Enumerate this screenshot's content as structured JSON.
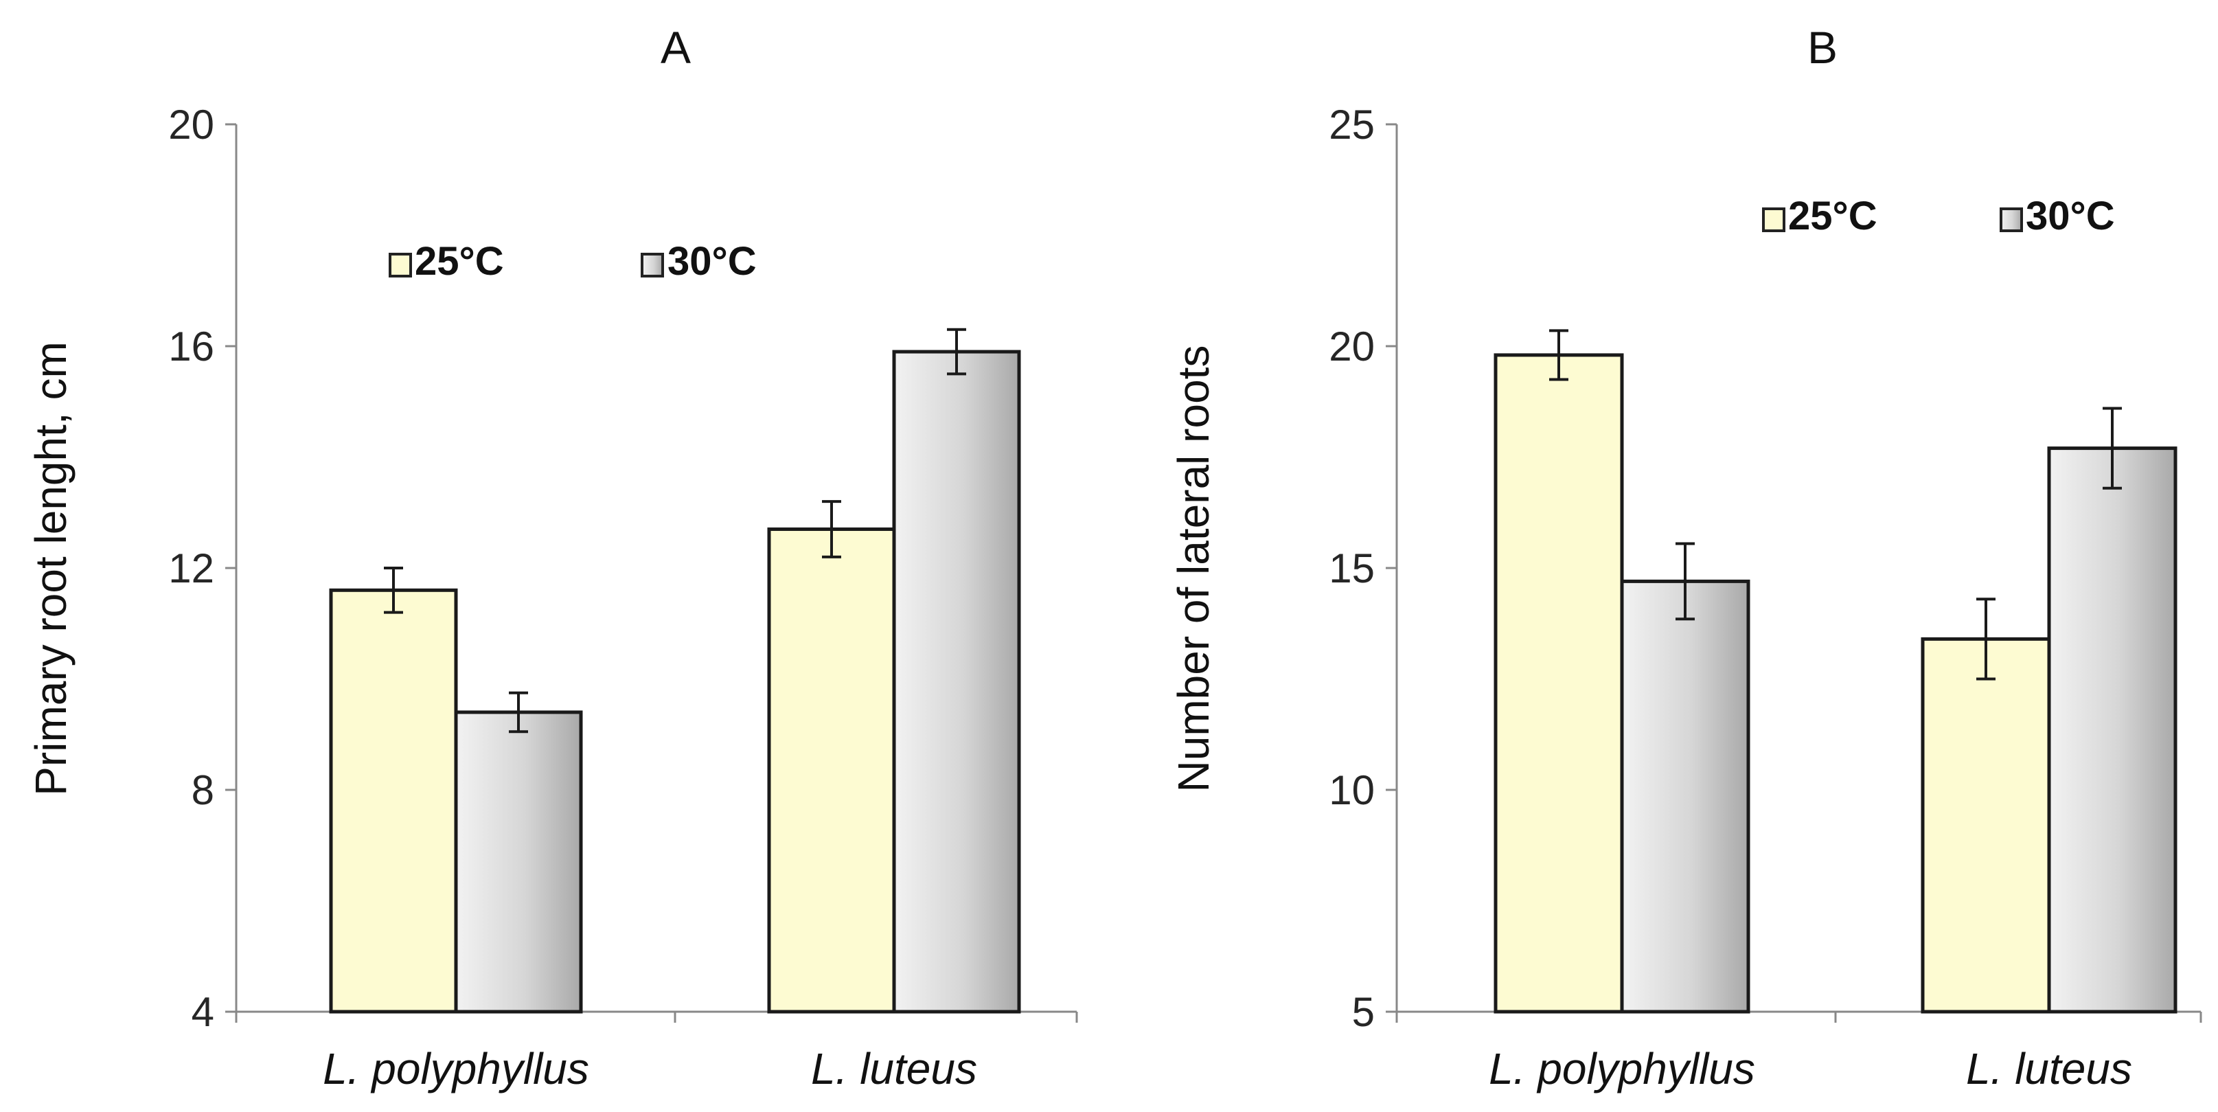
{
  "chart_data": [
    {
      "type": "bar",
      "title": "A",
      "ylabel": "Primary root lenght, cm",
      "ylim": [
        4,
        20
      ],
      "yticks": [
        "4",
        "8",
        "12",
        "16",
        "20"
      ],
      "categories": [
        "L. polyphyllus",
        "L. luteus"
      ],
      "series": [
        {
          "name": "25°C",
          "values": [
            11.6,
            12.7
          ],
          "errors": [
            0.4,
            0.5
          ],
          "color": "#fdfbd2"
        },
        {
          "name": "30°C",
          "values": [
            9.4,
            15.9
          ],
          "errors": [
            0.35,
            0.4
          ],
          "color": "#d9d9d9"
        }
      ],
      "legend": "top"
    },
    {
      "type": "bar",
      "title": "B",
      "ylabel": "Number of lateral roots",
      "ylim": [
        5,
        25
      ],
      "yticks": [
        "5",
        "10",
        "15",
        "20",
        "25"
      ],
      "categories": [
        "L. polyphyllus",
        "L. luteus"
      ],
      "series": [
        {
          "name": "25°C",
          "values": [
            19.8,
            13.4
          ],
          "errors": [
            0.55,
            0.9
          ],
          "color": "#fdfbd2"
        },
        {
          "name": "30°C",
          "values": [
            14.7,
            17.7
          ],
          "errors": [
            0.85,
            0.9
          ],
          "color": "#d9d9d9"
        }
      ],
      "legend": "top-right"
    }
  ]
}
